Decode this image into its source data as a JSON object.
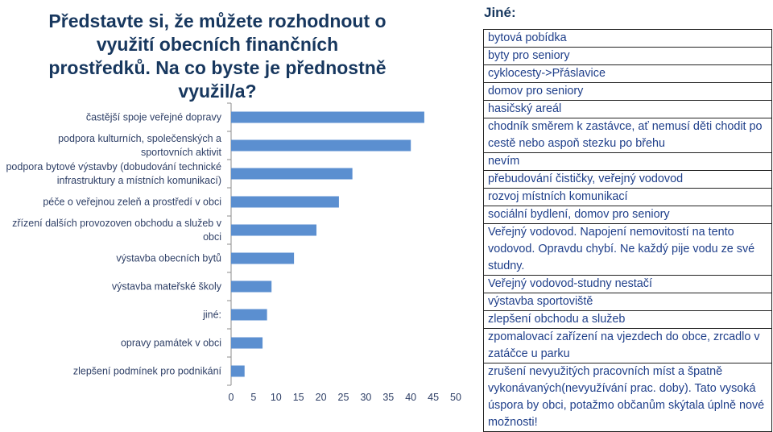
{
  "chart_data": {
    "type": "bar",
    "orientation": "horizontal",
    "title": "Představte si, že můžete rozhodnout o využití obecních finančních prostředků. Na co byste je přednostně využil/a?",
    "categories": [
      "častější spoje veřejné dopravy",
      "podpora kulturních, společenských a sportovních aktivit",
      "podpora bytové výstavby (dobudování technické infrastruktury a místních komunikací)",
      "péče o veřejnou zeleň a prostředí v obci",
      "zřízení dalších provozoven obchodu a služeb v obci",
      "výstavba obecních bytů",
      "výstavba mateřské školy",
      "jiné:",
      "opravy památek v obci",
      "zlepšení podmínek pro podnikání"
    ],
    "values": [
      43,
      40,
      27,
      24,
      19,
      14,
      9,
      8,
      7,
      3
    ],
    "xlim": [
      0,
      50
    ],
    "xticks": [
      0,
      5,
      10,
      15,
      20,
      25,
      30,
      35,
      40,
      45,
      50
    ],
    "bar_color": "#5b8fd0",
    "grid": false
  },
  "other": {
    "title": "Jiné:",
    "items": [
      "bytová pobídka",
      "byty pro seniory",
      "cyklocesty->Přáslavice",
      "domov pro seniory",
      "hasičský areál",
      "chodník směrem k zastávce, ať nemusí děti chodit po cestě nebo aspoň stezku po břehu",
      "nevím",
      "přebudování čističky, veřejný vodovod",
      "rozvoj místních komunikací",
      "sociální bydlení, domov pro seniory",
      "Veřejný vodovod. Napojení nemovitostí na tento vodovod. Opravdu chybí. Ne každý pije vodu ze své studny.",
      "Veřejný vodovod-studny nestačí",
      "výstavba sportoviště",
      "zlepšení obchodu a služeb",
      "zpomalovací zařízení na vjezdech do obce, zrcadlo v zatáčce u parku",
      "zrušení nevyužitých pracovních míst a špatně vykonávaných(nevyužívání prac. doby). Tato vysoká úspora by obci, potažmo občanům skýtala úplně nové možnosti!"
    ]
  }
}
